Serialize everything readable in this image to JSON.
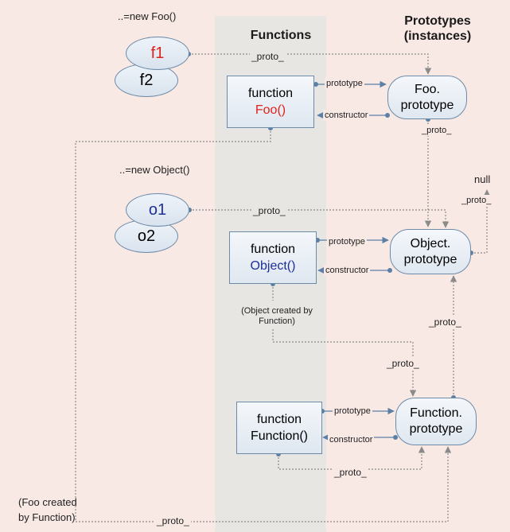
{
  "headers": {
    "functions": "Functions",
    "prototypes_line1": "Prototypes",
    "prototypes_line2": "(instances)"
  },
  "notes": {
    "new_foo": "..=new Foo()",
    "new_object": "..=new Object()",
    "object_created_line1": "(Object created by",
    "object_created_line2": "Function)",
    "foo_created_line1": "(Foo created",
    "foo_created_line2": "by Function)",
    "null": "null"
  },
  "instances": {
    "f1": "f1",
    "f2": "f2",
    "o1": "o1",
    "o2": "o2"
  },
  "functions": {
    "foo_line1": "function",
    "foo_line2": "Foo()",
    "object_line1": "function",
    "object_line2": "Object()",
    "function_line1": "function",
    "function_line2": "Function()"
  },
  "prototypes": {
    "foo_line1": "Foo.",
    "foo_line2": "prototype",
    "object_line1": "Object.",
    "object_line2": "prototype",
    "function_line1": "Function.",
    "function_line2": "prototype"
  },
  "links": {
    "proto": "_proto_",
    "prototype": "prototype",
    "constructor": "constructor"
  },
  "colors": {
    "background": "#f8e9e4",
    "band": "#e8e6e3",
    "node_border": "#6d8aa8",
    "foo_accent": "#e0221a",
    "object_accent": "#1f2f9a",
    "line": "#8a8a8a",
    "arrow": "#5b7fa6"
  }
}
